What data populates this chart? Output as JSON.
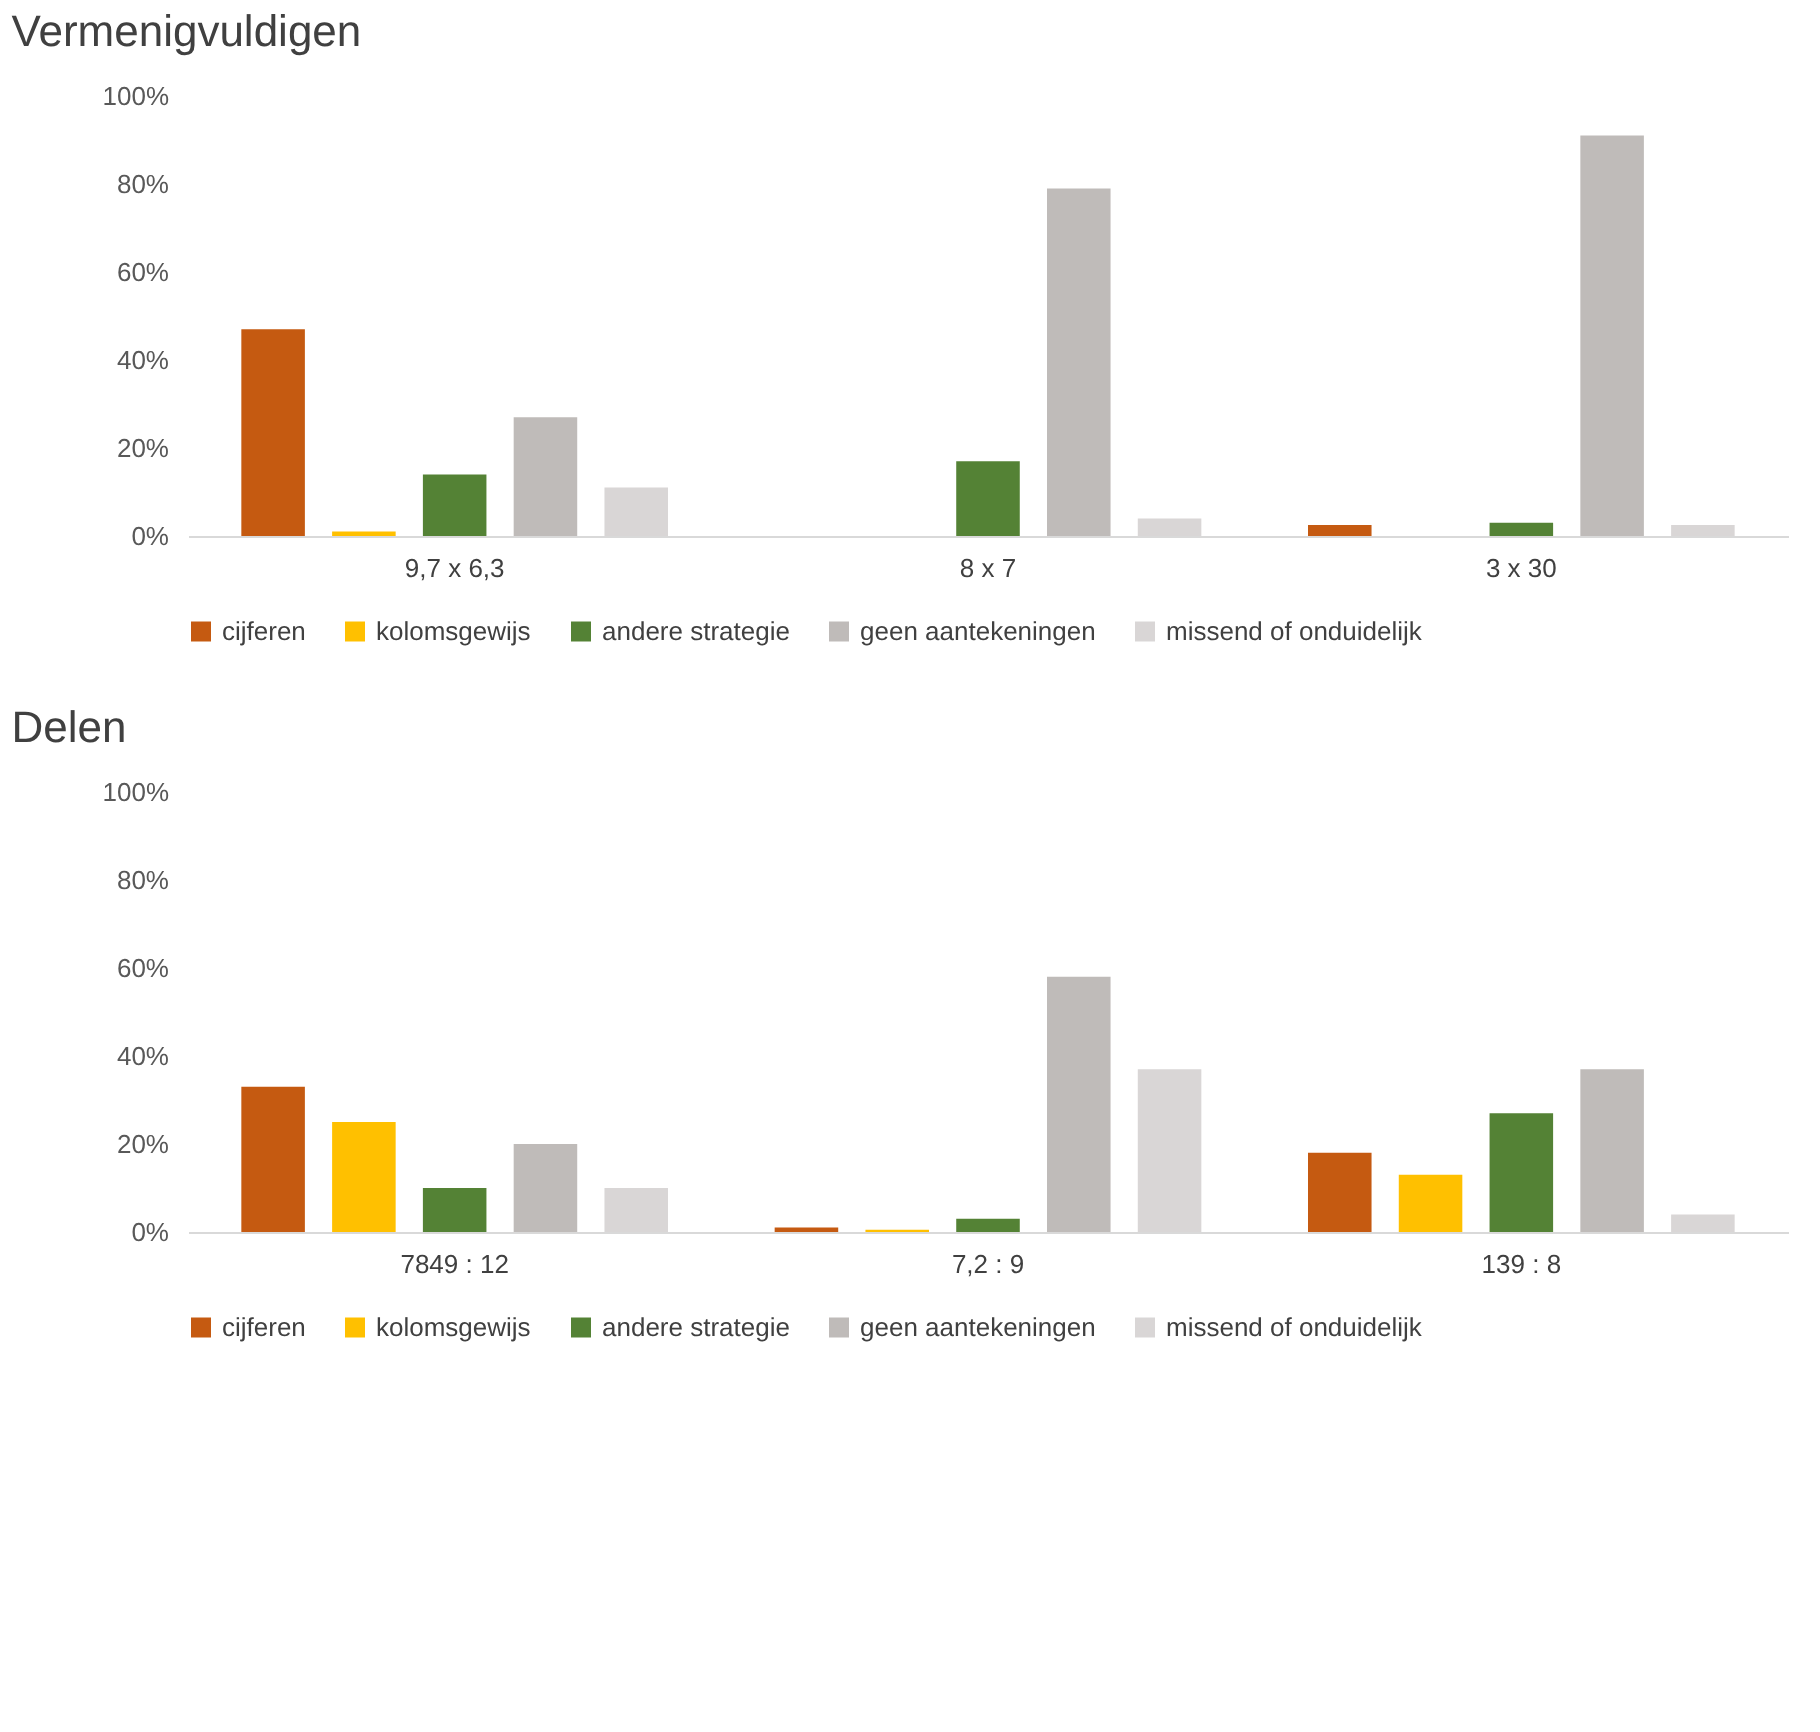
{
  "chart_data": [
    {
      "type": "bar",
      "title": "Vermenigvuldigen",
      "categories": [
        "9,7 x 6,3",
        "8 x 7",
        "3 x 30"
      ],
      "series": [
        {
          "name": "cijferen",
          "color": "#c55a11",
          "values": [
            47,
            0,
            2.5
          ]
        },
        {
          "name": "kolomsgewijs",
          "color": "#ffc000",
          "values": [
            1,
            0,
            0
          ]
        },
        {
          "name": "andere strategie",
          "color": "#548235",
          "values": [
            14,
            17,
            3
          ]
        },
        {
          "name": "geen aantekeningen",
          "color": "#bfbbb9",
          "values": [
            27,
            79,
            91
          ]
        },
        {
          "name": "missend of onduidelijk",
          "color": "#d9d6d6",
          "values": [
            11,
            4,
            2.5
          ]
        }
      ],
      "ylim": [
        0,
        100
      ],
      "yticks": [
        {
          "value": 0,
          "label": "0%"
        },
        {
          "value": 20,
          "label": "20%"
        },
        {
          "value": 40,
          "label": "40%"
        },
        {
          "value": 60,
          "label": "60%"
        },
        {
          "value": 80,
          "label": "80%"
        },
        {
          "value": 100,
          "label": "100%"
        }
      ],
      "grid": false,
      "legend": "bottom"
    },
    {
      "type": "bar",
      "title": "Delen",
      "categories": [
        "7849 : 12",
        "7,2 : 9",
        "139 : 8"
      ],
      "series": [
        {
          "name": "cijferen",
          "color": "#c55a11",
          "values": [
            33,
            1,
            18
          ]
        },
        {
          "name": "kolomsgewijs",
          "color": "#ffc000",
          "values": [
            25,
            0.5,
            13
          ]
        },
        {
          "name": "andere strategie",
          "color": "#548235",
          "values": [
            10,
            3,
            27
          ]
        },
        {
          "name": "geen aantekeningen",
          "color": "#bfbbb9",
          "values": [
            20,
            58,
            37
          ]
        },
        {
          "name": "missend of onduidelijk",
          "color": "#d9d6d6",
          "values": [
            10,
            37,
            4
          ]
        }
      ],
      "ylim": [
        0,
        100
      ],
      "yticks": [
        {
          "value": 0,
          "label": "0%"
        },
        {
          "value": 20,
          "label": "20%"
        },
        {
          "value": 40,
          "label": "40%"
        },
        {
          "value": 60,
          "label": "60%"
        },
        {
          "value": 80,
          "label": "80%"
        },
        {
          "value": 100,
          "label": "100%"
        }
      ],
      "grid": false,
      "legend": "bottom"
    }
  ]
}
